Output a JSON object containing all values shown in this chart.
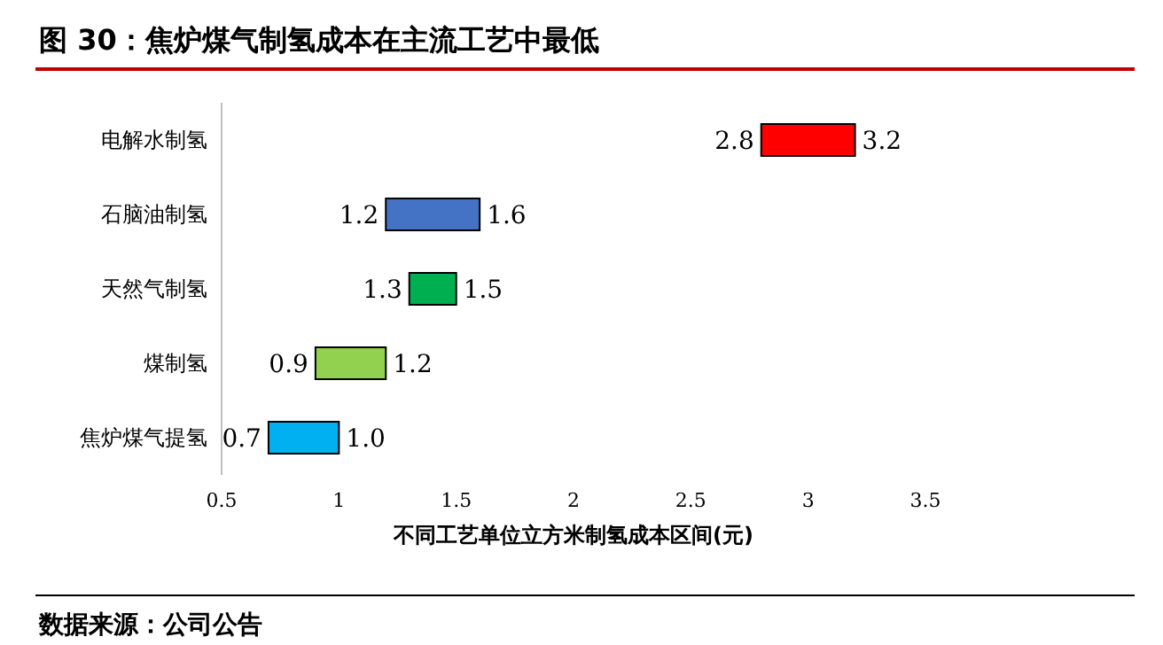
{
  "chart_data": {
    "type": "bar",
    "orientation": "horizontal",
    "title": "图 30：焦炉煤气制氢成本在主流工艺中最低",
    "categories": [
      "电解水制氢",
      "石脑油制氢",
      "天然气制氢",
      "煤制氢",
      "焦炉煤气提氢"
    ],
    "base": [
      2.8,
      1.2,
      1.3,
      0.9,
      0.7
    ],
    "values": [
      0.4,
      0.4,
      0.2,
      0.3,
      0.3
    ],
    "colors": [
      "#ff0000",
      "#4472c4",
      "#00b050",
      "#92d050",
      "#00b0f0"
    ],
    "xlim": [
      0.5,
      3.5
    ],
    "xticks": [
      0.5,
      1,
      1.5,
      2,
      2.5,
      3,
      3.5
    ],
    "xlabel": "不同工艺单位立方米制氢成本区间(元)",
    "annotations": [
      {
        "text": "2.8",
        "x": 2.8,
        "y": "电解水制氢"
      },
      {
        "text": "3.2",
        "x": 3.2,
        "y": "电解水制氢"
      },
      {
        "text": "1.2",
        "x": 1.2,
        "y": "石脑油制氢"
      },
      {
        "text": "1.6",
        "x": 1.6,
        "y": "石脑油制氢"
      },
      {
        "text": "1.3",
        "x": 1.3,
        "y": "天然气制氢"
      },
      {
        "text": "1.5",
        "x": 1.5,
        "y": "天然气制氢"
      },
      {
        "text": "0.9",
        "x": 0.9,
        "y": "煤制氢"
      },
      {
        "text": "1.2",
        "x": 1.2,
        "y": "煤制氢"
      },
      {
        "text": "0.7",
        "x": 0.7,
        "y": "焦炉煤气提氢"
      },
      {
        "text": "1.0",
        "x": 1.0,
        "y": "焦炉煤气提氢"
      },
      "数据来源：公司公告"
    ]
  }
}
